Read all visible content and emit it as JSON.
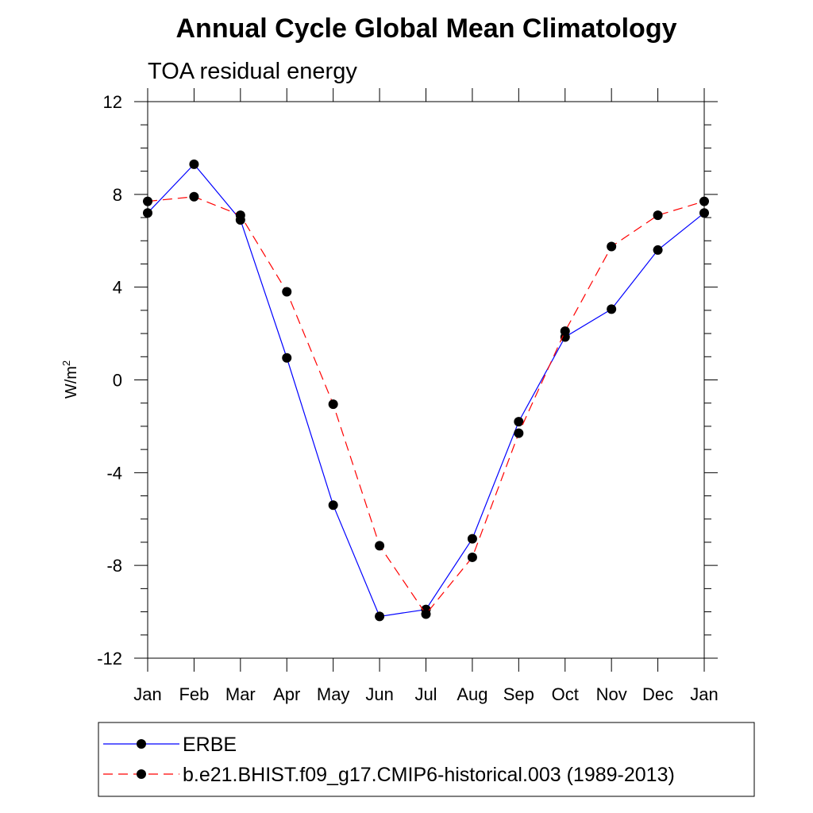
{
  "chart_data": {
    "type": "line",
    "title": "Annual Cycle Global Mean Climatology",
    "subtitle": "TOA residual energy",
    "xlabel": "",
    "ylabel": "W/m",
    "ylabel_superscript": "2",
    "categories": [
      "Jan",
      "Feb",
      "Mar",
      "Apr",
      "May",
      "Jun",
      "Jul",
      "Aug",
      "Sep",
      "Oct",
      "Nov",
      "Dec",
      "Jan"
    ],
    "ylim": [
      -12,
      12
    ],
    "yticks": [
      -12,
      -8,
      -4,
      0,
      4,
      8,
      12
    ],
    "yticks_minor_step": 1,
    "grid": false,
    "legend_position": "bottom",
    "series": [
      {
        "name": "ERBE",
        "color": "#0000ff",
        "dash": "solid",
        "values": [
          7.2,
          9.3,
          6.9,
          0.95,
          -5.4,
          -10.2,
          -9.9,
          -6.85,
          -1.8,
          1.85,
          3.05,
          5.6,
          7.2
        ]
      },
      {
        "name": "b.e21.BHIST.f09_g17.CMIP6-historical.003 (1989-2013)",
        "color": "#ff0000",
        "dash": "dashed",
        "values": [
          7.7,
          7.9,
          7.1,
          3.8,
          -1.05,
          -7.15,
          -10.1,
          -7.65,
          -2.3,
          2.1,
          5.75,
          7.1,
          7.7
        ]
      }
    ]
  }
}
